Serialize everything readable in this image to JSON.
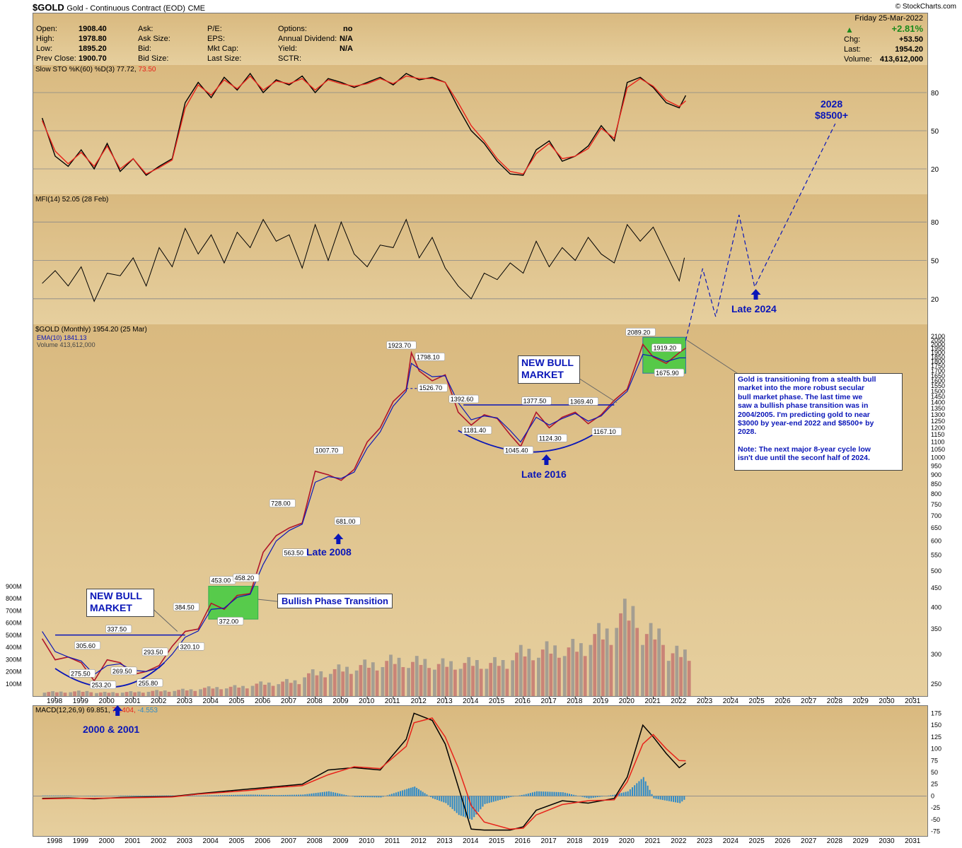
{
  "header": {
    "symbol": "$GOLD",
    "name": "Gold - Continuous Contract (EOD)",
    "exchange": "CME",
    "credit": "© StockCharts.com",
    "date": "Friday  25-Mar-2022",
    "quote": {
      "open_label": "Open:",
      "open": "1908.40",
      "high_label": "High:",
      "high": "1978.80",
      "low_label": "Low:",
      "low": "1895.20",
      "prev_label": "Prev Close:",
      "prev": "1900.70",
      "ask_label": "Ask:",
      "asksize_label": "Ask Size:",
      "bid_label": "Bid:",
      "bidsize_label": "Bid Size:",
      "pe_label": "P/E:",
      "eps_label": "EPS:",
      "mktcap_label": "Mkt Cap:",
      "lastsize_label": "Last Size:",
      "options_label": "Options:",
      "options": "no",
      "div_label": "Annual Dividend:",
      "div": "N/A",
      "yield_label": "Yield:",
      "yield": "N/A",
      "sctr_label": "SCTR:",
      "pct_change": "+2.81%",
      "chg_label": "Chg:",
      "chg": "+53.50",
      "last_label": "Last:",
      "last": "1954.20",
      "volume_label": "Volume:",
      "volume": "413,612,000"
    },
    "up_color": "#1c8a1c"
  },
  "panels": {
    "sto": {
      "legend": "Slow STO %K(60) %D(3) 77.72, ",
      "legend_val": "73.50",
      "ticks": [
        "80",
        "50",
        "20"
      ]
    },
    "mfi": {
      "legend": "MFI(14) 52.05 (28 Feb)",
      "ticks": [
        "80",
        "50",
        "20"
      ]
    },
    "price": {
      "legend": "$GOLD (Monthly) 1954.20 (25 Mar)",
      "legend_ema": "EMA(10) 1841.13",
      "legend_vol": "Volume 413,612,000",
      "vol_ticks": [
        "900M",
        "800M",
        "700M",
        "600M",
        "500M",
        "400M",
        "300M",
        "200M",
        "100M"
      ]
    },
    "macd": {
      "legend_a": "MACD(12,26,9) 69.851, ",
      "legend_b": "74.404, ",
      "legend_c": "-4.553"
    }
  },
  "annotations": {
    "new_bull_left": [
      "NEW BULL",
      "MARKET"
    ],
    "new_bull_right": [
      "NEW BULL",
      "MARKET"
    ],
    "bullish_phase": "Bullish Phase Transition",
    "late_2008": "Late 2008",
    "late_2016": "Late 2016",
    "late_2024": "Late 2024",
    "target": [
      "2028",
      "$8500+"
    ],
    "low_2000": "2000 & 2001",
    "note": [
      "Gold is transitioning from a stealth bull",
      "market into the more robust secular",
      "bull market phase. The last time we",
      "saw a bullish phase transition was in",
      "2004/2005. I'm predicting gold to near",
      "$3000 by year-end 2022 and $8500+ by",
      "2028.",
      "",
      "Note: The next major 8-year cycle low",
      "isn't due until the seconf half of 2024."
    ]
  },
  "chart_data": [
    {
      "type": "line",
      "title": "Slow STO %K(60) %D(3)",
      "x": [
        1997.5,
        1998.0,
        1998.5,
        1999.0,
        1999.5,
        2000.0,
        2000.5,
        2001.0,
        2001.5,
        2002.0,
        2002.5,
        2003.0,
        2003.5,
        2004.0,
        2004.5,
        2005.0,
        2005.5,
        2006.0,
        2006.5,
        2007.0,
        2007.5,
        2008.0,
        2008.5,
        2009.0,
        2009.5,
        2010.0,
        2010.5,
        2011.0,
        2011.5,
        2012.0,
        2012.5,
        2013.0,
        2013.5,
        2014.0,
        2014.5,
        2015.0,
        2015.5,
        2016.0,
        2016.5,
        2017.0,
        2017.5,
        2018.0,
        2018.5,
        2019.0,
        2019.5,
        2020.0,
        2020.5,
        2021.0,
        2021.5,
        2022.0,
        2022.25
      ],
      "series": [
        {
          "name": "%K",
          "values": [
            60,
            30,
            22,
            35,
            20,
            40,
            18,
            28,
            15,
            22,
            28,
            72,
            88,
            76,
            92,
            82,
            95,
            80,
            90,
            86,
            93,
            80,
            91,
            88,
            84,
            88,
            92,
            86,
            95,
            90,
            92,
            88,
            68,
            50,
            40,
            26,
            16,
            15,
            35,
            42,
            26,
            30,
            38,
            54,
            42,
            88,
            92,
            84,
            72,
            68,
            77.72
          ]
        },
        {
          "name": "%D",
          "values": [
            58,
            34,
            24,
            33,
            22,
            38,
            20,
            28,
            16,
            21,
            27,
            68,
            86,
            78,
            90,
            83,
            93,
            82,
            89,
            87,
            91,
            82,
            90,
            87,
            85,
            87,
            91,
            87,
            93,
            91,
            91,
            88,
            72,
            54,
            42,
            28,
            18,
            16,
            32,
            40,
            28,
            30,
            36,
            52,
            44,
            84,
            91,
            85,
            74,
            69,
            73.5
          ]
        }
      ],
      "ylim": [
        0,
        100
      ],
      "grid": true
    },
    {
      "type": "line",
      "title": "MFI(14)",
      "x": [
        1997.5,
        1998.0,
        1998.5,
        1999.0,
        1999.5,
        2000.0,
        2000.5,
        2001.0,
        2001.5,
        2002.0,
        2002.5,
        2003.0,
        2003.5,
        2004.0,
        2004.5,
        2005.0,
        2005.5,
        2006.0,
        2006.5,
        2007.0,
        2007.5,
        2008.0,
        2008.5,
        2009.0,
        2009.5,
        2010.0,
        2010.5,
        2011.0,
        2011.5,
        2012.0,
        2012.5,
        2013.0,
        2013.5,
        2014.0,
        2014.5,
        2015.0,
        2015.5,
        2016.0,
        2016.5,
        2017.0,
        2017.5,
        2018.0,
        2018.5,
        2019.0,
        2019.5,
        2020.0,
        2020.5,
        2021.0,
        2021.5,
        2022.0,
        2022.2
      ],
      "series": [
        {
          "name": "MFI",
          "values": [
            32,
            42,
            30,
            45,
            18,
            40,
            38,
            52,
            30,
            60,
            45,
            75,
            55,
            70,
            48,
            72,
            60,
            82,
            65,
            70,
            44,
            78,
            50,
            80,
            55,
            45,
            62,
            60,
            82,
            52,
            68,
            44,
            30,
            20,
            40,
            35,
            48,
            40,
            65,
            45,
            60,
            50,
            68,
            55,
            48,
            78,
            65,
            76,
            55,
            34,
            52.05
          ]
        }
      ],
      "ylim": [
        0,
        100
      ],
      "grid": true
    },
    {
      "type": "line",
      "title": "$GOLD (Monthly)",
      "x": [
        1997.5,
        1998.0,
        1998.5,
        1999.0,
        1999.5,
        2000.0,
        2000.5,
        2001.0,
        2001.5,
        2002.0,
        2002.5,
        2003.0,
        2003.5,
        2004.0,
        2004.5,
        2005.0,
        2005.5,
        2006.0,
        2006.5,
        2007.0,
        2007.5,
        2008.0,
        2008.5,
        2009.0,
        2009.5,
        2010.0,
        2010.5,
        2011.0,
        2011.5,
        2011.7,
        2012.0,
        2012.5,
        2013.0,
        2013.5,
        2014.0,
        2014.5,
        2015.0,
        2015.5,
        2015.9,
        2016.5,
        2017.0,
        2017.5,
        2018.0,
        2018.5,
        2019.0,
        2019.5,
        2020.0,
        2020.6,
        2021.0,
        2021.5,
        2022.0,
        2022.25
      ],
      "series": [
        {
          "name": "$GOLD",
          "values": [
            330,
            290,
            295,
            285,
            255,
            290,
            285,
            265,
            270,
            280,
            315,
            345,
            350,
            410,
            395,
            430,
            435,
            560,
            620,
            650,
            670,
            920,
            900,
            870,
            930,
            1100,
            1200,
            1410,
            1520,
            1900,
            1700,
            1600,
            1660,
            1320,
            1220,
            1300,
            1270,
            1150,
            1070,
            1320,
            1200,
            1280,
            1320,
            1230,
            1300,
            1420,
            1520,
            2000,
            1850,
            1780,
            1900,
            1954.2
          ]
        },
        {
          "name": "EMA(10)",
          "values": [
            345,
            305,
            295,
            288,
            265,
            280,
            283,
            272,
            270,
            276,
            300,
            333,
            346,
            395,
            398,
            425,
            433,
            520,
            600,
            640,
            665,
            860,
            890,
            880,
            915,
            1060,
            1170,
            1370,
            1500,
            1780,
            1720,
            1640,
            1650,
            1400,
            1260,
            1290,
            1275,
            1180,
            1100,
            1280,
            1220,
            1270,
            1310,
            1250,
            1290,
            1400,
            1500,
            1880,
            1860,
            1800,
            1841.13,
            1841.13
          ]
        }
      ],
      "annotations": [
        "337.50",
        "305.60",
        "275.50",
        "253.20",
        "269.50",
        "293.50",
        "255.80",
        "384.50",
        "320.10",
        "453.00",
        "458.20",
        "372.00",
        "728.00",
        "563.50",
        "1007.70",
        "681.00",
        "1923.70",
        "1798.10",
        "1526.70",
        "1392.60",
        "1181.40",
        "1045.40",
        "1377.50",
        "1124.30",
        "1369.40",
        "1167.10",
        "2089.20",
        "1919.20",
        "1675.90"
      ],
      "ylabel_ticks": [
        "2100",
        "2050",
        "2000",
        "1950",
        "1900",
        "1850",
        "1800",
        "1750",
        "1700",
        "1650",
        "1600",
        "1550",
        "1500",
        "1450",
        "1400",
        "1350",
        "1300",
        "1250",
        "1200",
        "1150",
        "1100",
        "1050",
        "1000",
        "950",
        "900",
        "850",
        "800",
        "750",
        "700",
        "650",
        "600",
        "550",
        "500",
        "450",
        "400",
        "350",
        "300",
        "250"
      ],
      "projection": {
        "x": [
          2022.25,
          2022.9,
          2023.4,
          2024.3,
          2024.9,
          2028.0
        ],
        "values": [
          2100,
          2900,
          2200,
          4300,
          2650,
          8500
        ],
        "style": "dashed"
      },
      "log_scale": true
    },
    {
      "type": "bar",
      "title": "Volume",
      "x": [
        1998,
        1999,
        2000,
        2001,
        2002,
        2003,
        2004,
        2005,
        2006,
        2007,
        2008,
        2009,
        2010,
        2011,
        2012,
        2013,
        2014,
        2015,
        2016,
        2017,
        2018,
        2019,
        2020,
        2021,
        2022
      ],
      "values": [
        40,
        45,
        35,
        40,
        50,
        60,
        80,
        90,
        120,
        140,
        220,
        260,
        300,
        340,
        330,
        310,
        320,
        320,
        420,
        450,
        470,
        600,
        800,
        600,
        413.612
      ],
      "ylabel": "Volume (M)"
    },
    {
      "type": "line",
      "title": "MACD(12,26,9)",
      "x": [
        1997.5,
        1998.5,
        1999.5,
        2000.5,
        2001.5,
        2002.5,
        2003.5,
        2004.5,
        2005.5,
        2006.5,
        2007.5,
        2008.5,
        2009.5,
        2010.5,
        2011.5,
        2011.8,
        2012.5,
        2013.0,
        2013.5,
        2014.0,
        2014.5,
        2015.5,
        2016.0,
        2016.5,
        2017.5,
        2018.5,
        2019.5,
        2020.0,
        2020.6,
        2021.0,
        2021.5,
        2022.0,
        2022.25
      ],
      "series": [
        {
          "name": "MACD",
          "values": [
            -5,
            -4,
            -6,
            -3,
            -2,
            -1,
            5,
            10,
            15,
            20,
            25,
            55,
            60,
            55,
            120,
            175,
            160,
            110,
            20,
            -70,
            -72,
            -72,
            -65,
            -30,
            -10,
            -15,
            -5,
            40,
            150,
            125,
            90,
            60,
            69.851
          ]
        },
        {
          "name": "Signal",
          "values": [
            -6,
            -5,
            -5,
            -4,
            -3,
            -2,
            4,
            8,
            12,
            18,
            22,
            45,
            62,
            58,
            105,
            155,
            165,
            125,
            60,
            -20,
            -55,
            -70,
            -68,
            -40,
            -18,
            -10,
            -8,
            30,
            110,
            130,
            100,
            75,
            74.404
          ]
        }
      ],
      "histogram_last": -4.553,
      "ylabel_ticks": [
        "175",
        "150",
        "125",
        "100",
        "75",
        "50",
        "25",
        "0",
        "-25",
        "-50",
        "-75"
      ],
      "ylim": [
        -80,
        180
      ]
    }
  ],
  "x_axis": {
    "years": [
      "1998",
      "1999",
      "2000",
      "2001",
      "2002",
      "2003",
      "2004",
      "2005",
      "2006",
      "2007",
      "2008",
      "2009",
      "2010",
      "2011",
      "2012",
      "2013",
      "2014",
      "2015",
      "2016",
      "2017",
      "2018",
      "2019",
      "2020",
      "2021",
      "2022",
      "2023",
      "2024",
      "2025",
      "2026",
      "2027",
      "2028",
      "2029",
      "2030",
      "2031"
    ]
  },
  "colors": {
    "stoK": "#000000",
    "stoD": "#e8231b",
    "annot_blue": "#0a16b8",
    "green_box": "#3fcc3f",
    "hist": "#2e8ac8"
  }
}
